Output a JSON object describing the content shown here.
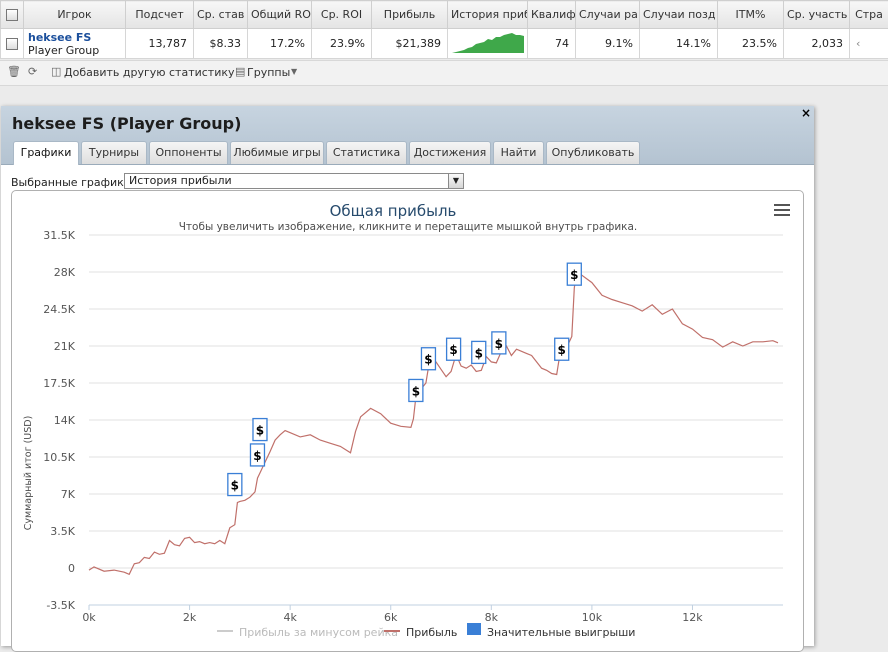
{
  "table": {
    "headers": [
      "Игрок",
      "Подсчет",
      "Ср. став",
      "Общий RO",
      "Ср. ROI",
      "Прибыль",
      "История приб",
      "Квалиф",
      "Случаи ра",
      "Случаи позд",
      "ITM%",
      "Ср. участь",
      "Стра"
    ],
    "row": {
      "player_name": "heksee FS",
      "player_group": "Player Group",
      "count": "13,787",
      "avg_stake": "$8.33",
      "total_roi": "17.2%",
      "avg_roi": "23.9%",
      "profit": "$21,389",
      "qualif": "74",
      "early": "9.1%",
      "late": "14.1%",
      "itm": "23.5%",
      "avg_field": "2,033",
      "last": "‹"
    }
  },
  "toolbar": {
    "add_stats": "Добавить другую статистику",
    "groups": "Группы"
  },
  "modal": {
    "title": "heksee FS (Player Group)",
    "close": "×",
    "tabs": [
      "Графики",
      "Турниры",
      "Оппоненты",
      "Любимые игры",
      "Статистика",
      "Достижения",
      "Найти",
      "Опубликовать"
    ],
    "active_tab": 0,
    "select_label": "Выбранные графики:",
    "select_value": "История прибыли"
  },
  "chart_data": {
    "type": "line",
    "title": "Общая прибыль",
    "subtitle": "Чтобы увеличить изображение, кликните и перетащите мышкой внутрь графика.",
    "ylabel": "Суммарный итог (USD)",
    "xlabel": "",
    "ylim": [
      -3500,
      31500
    ],
    "xlim": [
      0,
      13800
    ],
    "yticks": [
      "-3.5K",
      "0",
      "3.5K",
      "7K",
      "10.5K",
      "14K",
      "17.5K",
      "21K",
      "24.5K",
      "28K",
      "31.5K"
    ],
    "xticks": [
      "0k",
      "2k",
      "4k",
      "6k",
      "8k",
      "10k",
      "12k"
    ],
    "grid": true,
    "line_color": "#c0706a",
    "flag_color": "#3a7fd6",
    "series": [
      {
        "name": "Прибыль",
        "x": [
          0,
          100,
          300,
          500,
          700,
          800,
          900,
          1000,
          1100,
          1200,
          1300,
          1400,
          1500,
          1600,
          1700,
          1800,
          1900,
          2000,
          2100,
          2200,
          2300,
          2400,
          2500,
          2600,
          2700,
          2800,
          2900,
          2950,
          3000,
          3100,
          3200,
          3300,
          3350,
          3400,
          3500,
          3600,
          3700,
          3800,
          3900,
          4000,
          4200,
          4400,
          4600,
          4800,
          5000,
          5200,
          5300,
          5400,
          5600,
          5800,
          6000,
          6200,
          6400,
          6450,
          6500,
          6600,
          6700,
          6750,
          6800,
          6900,
          7000,
          7100,
          7200,
          7300,
          7400,
          7500,
          7600,
          7700,
          7800,
          7900,
          8000,
          8100,
          8200,
          8300,
          8400,
          8500,
          8600,
          8700,
          8800,
          8900,
          9000,
          9100,
          9200,
          9300,
          9350,
          9400,
          9500,
          9600,
          9650,
          9700,
          9800,
          10000,
          10200,
          10400,
          10600,
          10800,
          11000,
          11200,
          11400,
          11600,
          11800,
          12000,
          12200,
          12400,
          12600,
          12800,
          13000,
          13200,
          13400,
          13600,
          13700
        ],
        "y": [
          -200,
          100,
          -300,
          -200,
          -400,
          -600,
          400,
          500,
          1000,
          900,
          1500,
          1300,
          1400,
          2600,
          2200,
          2100,
          2800,
          2900,
          2400,
          2500,
          2300,
          2400,
          2300,
          2600,
          2300,
          3800,
          4100,
          6200,
          6300,
          6400,
          6700,
          7200,
          8500,
          9000,
          10000,
          11000,
          12100,
          12600,
          13000,
          12800,
          12400,
          12600,
          12100,
          11800,
          11500,
          10900,
          12900,
          14300,
          15100,
          14600,
          13700,
          13400,
          13300,
          14100,
          16200,
          16900,
          17500,
          19000,
          19900,
          19500,
          18800,
          18100,
          18600,
          20200,
          19100,
          18900,
          19200,
          18600,
          18700,
          20000,
          19500,
          19400,
          20500,
          21000,
          20100,
          20700,
          20500,
          20300,
          20100,
          19500,
          18900,
          18700,
          18400,
          18300,
          19800,
          20400,
          20900,
          21900,
          26500,
          28200,
          27700,
          27000,
          25800,
          25400,
          25100,
          24800,
          24300,
          24900,
          24000,
          24500,
          23100,
          22600,
          21800,
          21600,
          20900,
          21400,
          21000,
          21400,
          21400,
          21500,
          21300
        ]
      },
      {
        "name": "Значительные выигрыши",
        "x": [
          2900,
          3350,
          3400,
          6500,
          6750,
          7250,
          7750,
          8150,
          9400,
          9650
        ],
        "y": [
          7800,
          10600,
          13000,
          16700,
          19700,
          20600,
          20300,
          21200,
          20600,
          27700
        ]
      }
    ],
    "legend": [
      "Прибыль за минусом рейка",
      "Прибыль",
      "Значительные выигрыши"
    ],
    "legend_placement": "bottom",
    "flag_label": "$"
  }
}
